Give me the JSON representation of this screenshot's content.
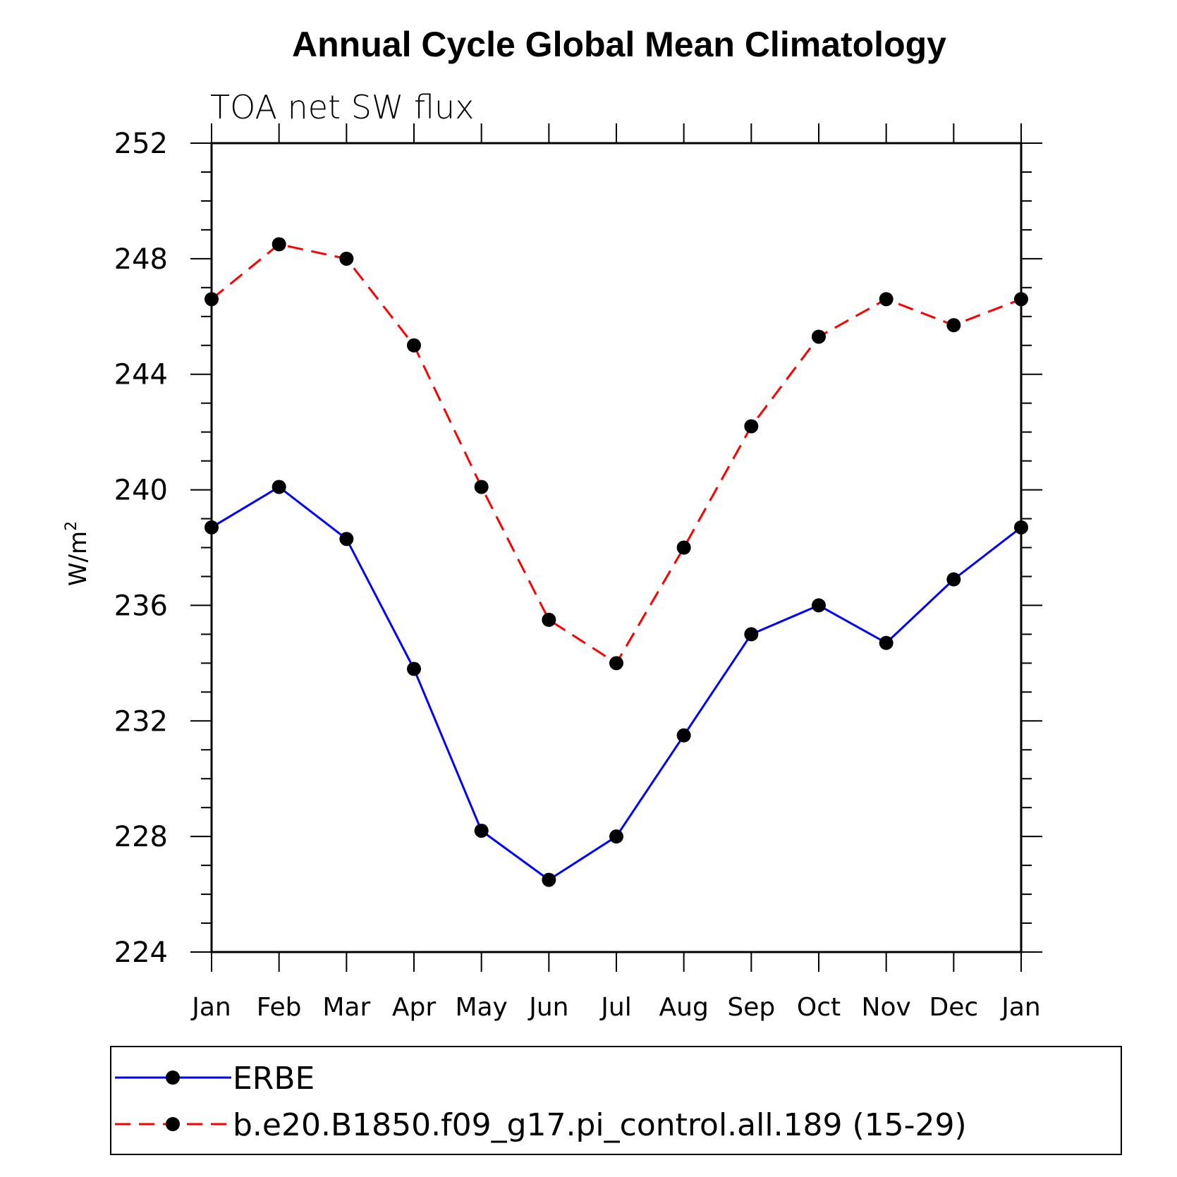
{
  "chart_data": {
    "type": "line",
    "title": "Annual Cycle Global Mean Climatology",
    "subtitle": "TOA net SW flux",
    "ylabel": "W/m",
    "ylabel_superscript": "2",
    "ylim": [
      224,
      252
    ],
    "yticks": [
      224,
      228,
      232,
      236,
      240,
      244,
      248,
      252
    ],
    "ytick_labels": [
      "224",
      "228",
      "232",
      "236",
      "240",
      "244",
      "248",
      "252"
    ],
    "categories": [
      "Jan",
      "Feb",
      "Mar",
      "Apr",
      "May",
      "Jun",
      "Jul",
      "Aug",
      "Sep",
      "Oct",
      "Nov",
      "Dec",
      "Jan"
    ],
    "series": [
      {
        "name": "ERBE",
        "color": "#0000ff",
        "dash": "solid",
        "values": [
          238.7,
          240.1,
          238.3,
          233.8,
          228.2,
          226.5,
          228.0,
          231.5,
          235.0,
          236.0,
          234.7,
          236.9,
          238.7
        ]
      },
      {
        "name": "b.e20.B1850.f09_g17.pi_control.all.189 (15-29)",
        "color": "#ff0000",
        "dash": "dashed",
        "values": [
          246.6,
          248.5,
          248.0,
          245.0,
          240.1,
          235.5,
          234.0,
          238.0,
          242.2,
          245.3,
          246.6,
          245.7,
          246.6
        ]
      }
    ],
    "marker_color": "#000000",
    "legend": "bottom"
  }
}
